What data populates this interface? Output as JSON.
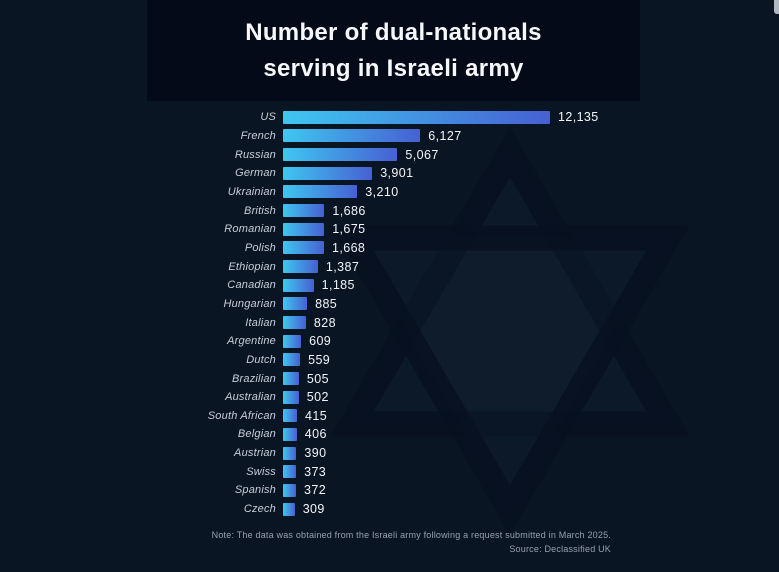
{
  "header": {
    "title_line1": "Number of dual-nationals",
    "title_line2": "serving in Israeli army"
  },
  "chart_data": {
    "type": "bar",
    "orientation": "horizontal",
    "title": "Number of dual-nationals serving in Israeli army",
    "categories": [
      "US",
      "French",
      "Russian",
      "German",
      "Ukrainian",
      "British",
      "Romanian",
      "Polish",
      "Ethiopian",
      "Canadian",
      "Hungarian",
      "Italian",
      "Argentine",
      "Dutch",
      "Brazilian",
      "Australian",
      "South African",
      "Belgian",
      "Austrian",
      "Swiss",
      "Spanish",
      "Czech"
    ],
    "values": [
      12135,
      6127,
      5067,
      3901,
      3210,
      1686,
      1675,
      1668,
      1387,
      1185,
      885,
      828,
      609,
      559,
      505,
      502,
      415,
      406,
      390,
      373,
      372,
      309
    ],
    "value_labels": [
      "12,135",
      "6,127",
      "5,067",
      "3,901",
      "3,210",
      "1,686",
      "1,675",
      "1,668",
      "1,387",
      "1,185",
      "885",
      "828",
      "609",
      "559",
      "505",
      "502",
      "415",
      "406",
      "390",
      "373",
      "372",
      "309"
    ],
    "xlim": [
      0,
      12135
    ],
    "grid": false,
    "legend": false,
    "bar_gradient_start": "#3fc6f0",
    "bar_gradient_end": "#4760d2"
  },
  "footer": {
    "note": "Note: The data was obtained from the Israeli army following a request submitted in March 2025.",
    "source": "Source: Declassified UK"
  },
  "watermark": {
    "icon": "star-of-david",
    "stroke_color": "#071120",
    "fill_color": "#16283c"
  },
  "colors": {
    "page_background": "#0a1523",
    "title_band_background": "#040a18",
    "country_label": "#c8ced8",
    "value_label": "#f3f5f9",
    "footnote": "#98a1ad"
  }
}
